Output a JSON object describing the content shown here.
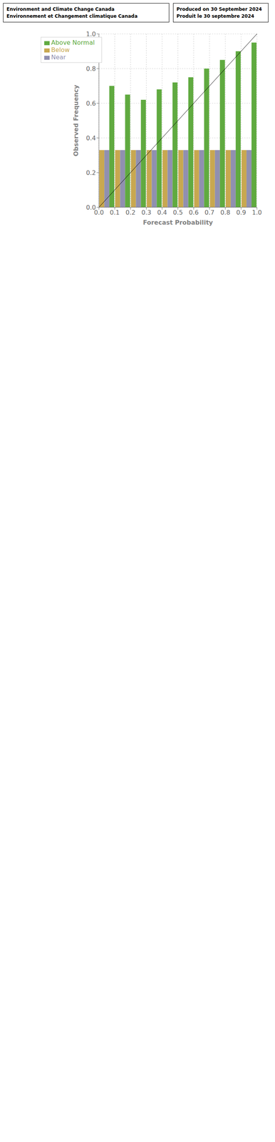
{
  "chart_data": {
    "type": "bar",
    "annotations": [
      "Environment and Climate Change Canada",
      "Environnement et Changement climatique Canada",
      "Produced on 30 September 2024",
      "Produit le 30 septembre 2024"
    ],
    "xlabel": "Forecast Probability",
    "ylabel": "Observed Frequency",
    "x": [
      0.05,
      0.15,
      0.25,
      0.35,
      0.45,
      0.55,
      0.65,
      0.75,
      0.85,
      0.95
    ],
    "series": [
      {
        "name": "Below",
        "color": "#c8a850",
        "values": [
          0.33,
          0.33,
          0.33,
          0.33,
          0.33,
          0.33,
          0.33,
          0.33,
          0.33,
          0.33
        ]
      },
      {
        "name": "Near",
        "color": "#9090b0",
        "values": [
          0.33,
          0.33,
          0.33,
          0.33,
          0.33,
          0.33,
          0.33,
          0.33,
          0.33,
          0.33
        ]
      },
      {
        "name": "Above Normal",
        "color": "#60aa40",
        "values": [
          0.7,
          0.65,
          0.62,
          0.68,
          0.72,
          0.75,
          0.8,
          0.85,
          0.9,
          0.95
        ]
      }
    ],
    "xlim": [
      0.0,
      1.0
    ],
    "ylim": [
      0.0,
      1.0
    ],
    "xticks": [
      {
        "value": 0,
        "label": "0.0"
      },
      0.1,
      0.2,
      0.3,
      0.4,
      0.5,
      0.6,
      0.7,
      0.8,
      0.9,
      {
        "value": 1,
        "label": "1.0"
      }
    ],
    "yticks": [
      {
        "value": 0,
        "label": "0.0"
      },
      0.2,
      0.4,
      0.6,
      0.8,
      {
        "value": 1,
        "label": "1.0"
      }
    ],
    "grid": true,
    "legend": "upper left",
    "reference_line": {
      "x": [
        0,
        1
      ],
      "y": [
        0,
        1
      ]
    }
  }
}
